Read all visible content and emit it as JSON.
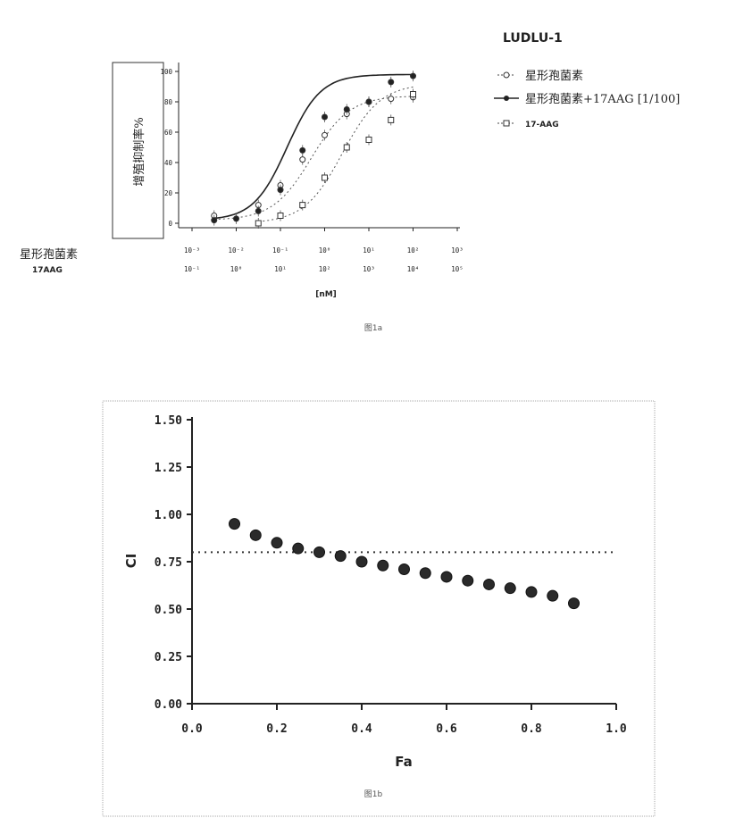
{
  "chart_data": [
    {
      "type": "line",
      "title": "LUDLU-1",
      "ylabel": "增殖抑制率%",
      "xlabel": "[nM]",
      "x_axis_labels": [
        "星形孢菌素",
        "17AAG"
      ],
      "x_ticks_row1": [
        "10⁻³",
        "10⁻²",
        "10⁻¹",
        "10⁰",
        "10¹",
        "10²",
        "10³"
      ],
      "x_ticks_row2": [
        "10⁻¹",
        "10⁰",
        "10¹",
        "10²",
        "10³",
        "10⁴",
        "10⁵"
      ],
      "y_ticks": [
        "0",
        "20",
        "40",
        "60",
        "80",
        "100"
      ],
      "xlim_log10": [
        -3,
        3
      ],
      "ylim": [
        -5,
        110
      ],
      "caption": "图1a",
      "series": [
        {
          "name": "星形孢菌素",
          "marker": "open-circle",
          "line": "dotted",
          "x_log10": [
            -2.5,
            -1.5,
            -1.0,
            -0.5,
            0.0,
            0.5,
            1.0,
            1.5,
            2.0
          ],
          "y": [
            5,
            12,
            25,
            42,
            58,
            72,
            80,
            82,
            83
          ],
          "fit": "sigmoid",
          "fit_params": {
            "bottom": 2,
            "top": 84,
            "logEC50": -0.3,
            "hill": 1.0
          }
        },
        {
          "name": "星形孢菌素+17AAG [1/100]",
          "marker": "filled-circle",
          "line": "solid",
          "x_log10": [
            -2.5,
            -2.0,
            -1.5,
            -1.0,
            -0.5,
            0.0,
            0.5,
            1.0,
            1.5,
            2.0
          ],
          "y": [
            2,
            3,
            8,
            22,
            48,
            70,
            75,
            80,
            93,
            97
          ],
          "fit": "sigmoid",
          "fit_params": {
            "bottom": 2,
            "top": 98,
            "logEC50": -0.85,
            "hill": 1.15
          }
        },
        {
          "name": "17-AAG",
          "marker": "open-square",
          "line": "dotted",
          "x_log10": [
            -1.5,
            -1.0,
            -0.5,
            0.0,
            0.5,
            1.0,
            1.5,
            2.0
          ],
          "y": [
            0,
            5,
            12,
            30,
            50,
            55,
            68,
            85
          ],
          "fit": "sigmoid",
          "fit_params": {
            "bottom": 0,
            "top": 92,
            "logEC50": 0.4,
            "hill": 1.0
          }
        }
      ]
    },
    {
      "type": "scatter",
      "xlabel": "Fa",
      "ylabel": "CI",
      "xlim": [
        0.0,
        1.0
      ],
      "ylim": [
        0.0,
        1.5
      ],
      "x_ticks": [
        "0.0",
        "0.2",
        "0.4",
        "0.6",
        "0.8",
        "1.0"
      ],
      "y_ticks": [
        "0.00",
        "0.25",
        "0.50",
        "0.75",
        "1.00",
        "1.25",
        "1.50"
      ],
      "reference_line_y": 0.8,
      "caption": "图1b",
      "x": [
        0.1,
        0.15,
        0.2,
        0.25,
        0.3,
        0.35,
        0.4,
        0.45,
        0.5,
        0.55,
        0.6,
        0.65,
        0.7,
        0.75,
        0.8,
        0.85,
        0.9
      ],
      "y": [
        0.95,
        0.89,
        0.85,
        0.82,
        0.8,
        0.78,
        0.75,
        0.73,
        0.71,
        0.69,
        0.67,
        0.65,
        0.63,
        0.61,
        0.59,
        0.57,
        0.53
      ]
    }
  ]
}
